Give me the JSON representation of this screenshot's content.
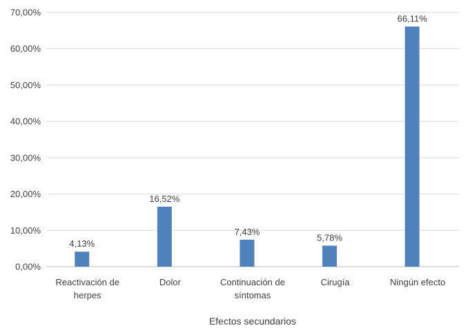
{
  "chart_data": {
    "type": "bar",
    "title": "",
    "xlabel": "Efectos secundarios",
    "ylabel": "",
    "ylim": [
      0,
      70
    ],
    "yticks": [
      0,
      10,
      20,
      30,
      40,
      50,
      60,
      70
    ],
    "ytick_labels": [
      "0,00%",
      "10,00%",
      "20,00%",
      "30,00%",
      "40,00%",
      "50,00%",
      "60,00%",
      "70,00%"
    ],
    "categories": [
      [
        "Reactivación de",
        "herpes"
      ],
      [
        "Dolor"
      ],
      [
        "Continuación de",
        "síntomas"
      ],
      [
        "Cirugía"
      ],
      [
        "Ningún efecto"
      ]
    ],
    "values": [
      4.13,
      16.52,
      7.43,
      5.78,
      66.11
    ],
    "data_labels": [
      "4,13%",
      "16,52%",
      "7,43%",
      "5,78%",
      "66,11%"
    ],
    "bar_color": "#4f81bd",
    "gridlines": true,
    "legend": "none"
  }
}
